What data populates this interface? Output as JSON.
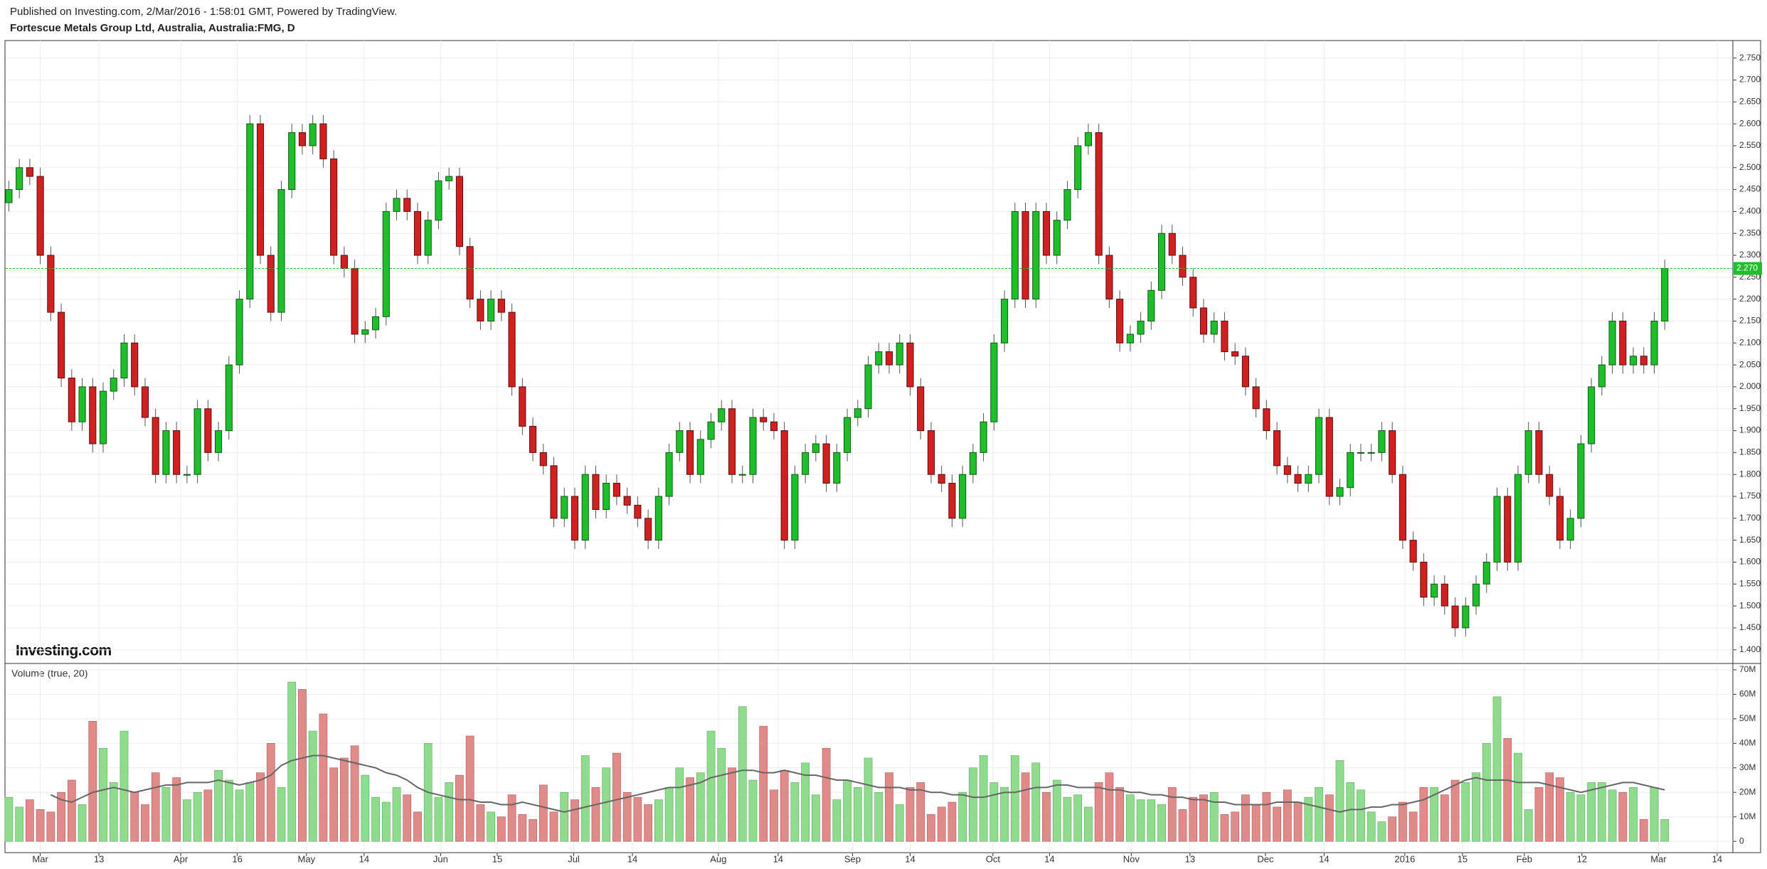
{
  "header": {
    "published": "Published on Investing.com, 2/Mar/2016 - 1:58:01 GMT, Powered by TradingView.",
    "symbol": "Fortescue Metals Group Ltd, Australia, Australia:FMG, D"
  },
  "logo": "Investing.com",
  "chart_data": {
    "type": "candlestick",
    "up_color": "#1fbf2c",
    "down_color": "#d0201f",
    "up_border": "#0d5c12",
    "down_border": "#5c0d0d",
    "open": [
      2.42,
      2.45,
      2.5,
      2.48,
      2.3,
      2.17,
      2.02,
      1.92,
      2.0,
      1.87,
      1.99,
      2.02,
      2.1,
      2.0,
      1.93,
      1.8,
      1.9,
      1.8,
      1.8,
      1.95,
      1.85,
      1.9,
      2.05,
      2.2,
      2.6,
      2.3,
      2.17,
      2.45,
      2.58,
      2.55,
      2.6,
      2.52,
      2.3,
      2.27,
      2.12,
      2.13,
      2.16,
      2.4,
      2.43,
      2.4,
      2.3,
      2.38,
      2.47,
      2.48,
      2.32,
      2.2,
      2.15,
      2.2,
      2.17,
      2.0,
      1.91,
      1.85,
      1.82,
      1.7,
      1.75,
      1.65,
      1.8,
      1.72,
      1.78,
      1.75,
      1.73,
      1.7,
      1.65,
      1.75,
      1.85,
      1.9,
      1.8,
      1.88,
      1.92,
      1.95,
      1.8,
      1.8,
      1.93,
      1.92,
      1.9,
      1.65,
      1.8,
      1.85,
      1.87,
      1.78,
      1.85,
      1.93,
      1.95,
      2.05,
      2.08,
      2.05,
      2.1,
      2.0,
      1.9,
      1.8,
      1.78,
      1.7,
      1.8,
      1.85,
      1.92,
      2.1,
      2.2,
      2.4,
      2.2,
      2.4,
      2.3,
      2.38,
      2.45,
      2.55,
      2.58,
      2.3,
      2.2,
      2.1,
      2.12,
      2.15,
      2.22,
      2.35,
      2.3,
      2.25,
      2.18,
      2.12,
      2.15,
      2.08,
      2.07,
      2.0,
      1.95,
      1.9,
      1.82,
      1.8,
      1.78,
      1.8,
      1.93,
      1.75,
      1.77,
      1.85,
      1.85,
      1.85,
      1.9,
      1.8,
      1.65,
      1.6,
      1.52,
      1.55,
      1.5,
      1.45,
      1.5,
      1.55,
      1.6,
      1.75,
      1.6,
      1.8,
      1.9,
      1.8,
      1.75,
      1.65,
      1.7,
      1.87,
      2.0,
      2.05,
      2.15,
      2.05,
      2.07,
      2.05,
      2.15
    ],
    "high": [
      2.47,
      2.52,
      2.52,
      2.5,
      2.32,
      2.19,
      2.04,
      2.02,
      2.02,
      2.01,
      2.04,
      2.12,
      2.12,
      2.02,
      1.95,
      1.92,
      1.92,
      1.82,
      1.97,
      1.97,
      1.92,
      2.07,
      2.22,
      2.62,
      2.62,
      2.32,
      2.47,
      2.6,
      2.6,
      2.62,
      2.62,
      2.54,
      2.32,
      2.29,
      2.15,
      2.18,
      2.42,
      2.45,
      2.45,
      2.42,
      2.4,
      2.49,
      2.5,
      2.5,
      2.34,
      2.22,
      2.22,
      2.22,
      2.19,
      2.02,
      1.93,
      1.87,
      1.84,
      1.77,
      1.77,
      1.82,
      1.82,
      1.8,
      1.8,
      1.77,
      1.75,
      1.72,
      1.77,
      1.87,
      1.92,
      1.92,
      1.9,
      1.94,
      1.97,
      1.97,
      1.82,
      1.95,
      1.95,
      1.94,
      1.92,
      1.82,
      1.87,
      1.89,
      1.89,
      1.87,
      1.95,
      1.97,
      2.07,
      2.1,
      2.1,
      2.12,
      2.12,
      2.02,
      1.92,
      1.82,
      1.8,
      1.82,
      1.87,
      1.94,
      2.12,
      2.22,
      2.42,
      2.42,
      2.42,
      2.42,
      2.4,
      2.47,
      2.57,
      2.6,
      2.6,
      2.32,
      2.22,
      2.14,
      2.17,
      2.24,
      2.37,
      2.37,
      2.32,
      2.27,
      2.2,
      2.17,
      2.17,
      2.1,
      2.09,
      2.02,
      1.97,
      1.92,
      1.84,
      1.82,
      1.82,
      1.95,
      1.95,
      1.79,
      1.87,
      1.87,
      1.87,
      1.92,
      1.92,
      1.82,
      1.67,
      1.62,
      1.57,
      1.57,
      1.52,
      1.52,
      1.57,
      1.62,
      1.77,
      1.77,
      1.82,
      1.92,
      1.92,
      1.82,
      1.77,
      1.72,
      1.89,
      2.02,
      2.07,
      2.17,
      2.17,
      2.09,
      2.09,
      2.17,
      2.29
    ],
    "low": [
      2.4,
      2.43,
      2.46,
      2.28,
      2.15,
      2.0,
      1.9,
      1.9,
      1.85,
      1.85,
      1.97,
      2.0,
      1.98,
      1.91,
      1.78,
      1.78,
      1.78,
      1.78,
      1.78,
      1.83,
      1.83,
      1.88,
      2.03,
      2.18,
      2.28,
      2.15,
      2.15,
      2.43,
      2.53,
      2.53,
      2.5,
      2.28,
      2.25,
      2.1,
      2.1,
      2.11,
      2.14,
      2.38,
      2.38,
      2.28,
      2.28,
      2.36,
      2.45,
      2.3,
      2.18,
      2.13,
      2.13,
      2.15,
      1.98,
      1.89,
      1.83,
      1.8,
      1.68,
      1.68,
      1.63,
      1.63,
      1.7,
      1.7,
      1.73,
      1.71,
      1.68,
      1.63,
      1.63,
      1.73,
      1.83,
      1.78,
      1.78,
      1.86,
      1.9,
      1.78,
      1.78,
      1.78,
      1.9,
      1.88,
      1.63,
      1.63,
      1.78,
      1.83,
      1.76,
      1.76,
      1.83,
      1.91,
      1.93,
      2.03,
      2.03,
      2.03,
      1.98,
      1.88,
      1.78,
      1.76,
      1.68,
      1.68,
      1.78,
      1.83,
      1.9,
      2.08,
      2.18,
      2.18,
      2.18,
      2.28,
      2.28,
      2.36,
      2.43,
      2.53,
      2.28,
      2.18,
      2.08,
      2.08,
      2.1,
      2.13,
      2.2,
      2.28,
      2.23,
      2.16,
      2.1,
      2.1,
      2.06,
      2.05,
      1.98,
      1.93,
      1.88,
      1.8,
      1.78,
      1.76,
      1.76,
      1.78,
      1.73,
      1.73,
      1.75,
      1.83,
      1.83,
      1.83,
      1.78,
      1.63,
      1.58,
      1.5,
      1.5,
      1.48,
      1.43,
      1.43,
      1.48,
      1.53,
      1.58,
      1.58,
      1.58,
      1.78,
      1.78,
      1.73,
      1.63,
      1.63,
      1.68,
      1.85,
      1.98,
      2.03,
      2.03,
      2.03,
      2.03,
      2.03,
      2.13
    ],
    "close": [
      2.45,
      2.5,
      2.48,
      2.3,
      2.17,
      2.02,
      1.92,
      2.0,
      1.87,
      1.99,
      2.02,
      2.1,
      2.0,
      1.93,
      1.8,
      1.9,
      1.8,
      1.8,
      1.95,
      1.85,
      1.9,
      2.05,
      2.2,
      2.6,
      2.3,
      2.17,
      2.45,
      2.58,
      2.55,
      2.6,
      2.52,
      2.3,
      2.27,
      2.12,
      2.13,
      2.16,
      2.4,
      2.43,
      2.4,
      2.3,
      2.38,
      2.47,
      2.48,
      2.32,
      2.2,
      2.15,
      2.2,
      2.17,
      2.0,
      1.91,
      1.85,
      1.82,
      1.7,
      1.75,
      1.65,
      1.8,
      1.72,
      1.78,
      1.75,
      1.73,
      1.7,
      1.65,
      1.75,
      1.85,
      1.9,
      1.8,
      1.88,
      1.92,
      1.95,
      1.8,
      1.8,
      1.93,
      1.92,
      1.9,
      1.65,
      1.8,
      1.85,
      1.87,
      1.78,
      1.85,
      1.93,
      1.95,
      2.05,
      2.08,
      2.05,
      2.1,
      2.0,
      1.9,
      1.8,
      1.78,
      1.7,
      1.8,
      1.85,
      1.92,
      2.1,
      2.2,
      2.4,
      2.2,
      2.4,
      2.3,
      2.38,
      2.45,
      2.55,
      2.58,
      2.3,
      2.2,
      2.1,
      2.12,
      2.15,
      2.22,
      2.35,
      2.3,
      2.25,
      2.18,
      2.12,
      2.15,
      2.08,
      2.07,
      2.0,
      1.95,
      1.9,
      1.82,
      1.8,
      1.78,
      1.8,
      1.93,
      1.75,
      1.77,
      1.85,
      1.85,
      1.85,
      1.9,
      1.8,
      1.65,
      1.6,
      1.52,
      1.55,
      1.5,
      1.45,
      1.5,
      1.55,
      1.6,
      1.75,
      1.6,
      1.8,
      1.9,
      1.8,
      1.75,
      1.65,
      1.7,
      1.87,
      2.0,
      2.05,
      2.15,
      2.05,
      2.07,
      2.05,
      2.15,
      2.27
    ],
    "ylim": [
      1.372,
      2.79
    ],
    "yticks": [
      {
        "value": 1.4,
        "label": "1.400"
      },
      {
        "value": 1.45,
        "label": "1.450"
      },
      {
        "value": 1.5,
        "label": "1.500"
      },
      {
        "value": 1.55,
        "label": "1.550"
      },
      {
        "value": 1.6,
        "label": "1.600"
      },
      {
        "value": 1.65,
        "label": "1.650"
      },
      {
        "value": 1.7,
        "label": "1.700"
      },
      {
        "value": 1.75,
        "label": "1.750"
      },
      {
        "value": 1.8,
        "label": "1.800"
      },
      {
        "value": 1.85,
        "label": "1.850"
      },
      {
        "value": 1.9,
        "label": "1.900"
      },
      {
        "value": 1.95,
        "label": "1.950"
      },
      {
        "value": 2,
        "label": "2.000"
      },
      {
        "value": 2.05,
        "label": "2.050"
      },
      {
        "value": 2.1,
        "label": "2.100"
      },
      {
        "value": 2.15,
        "label": "2.150"
      },
      {
        "value": 2.2,
        "label": "2.200"
      },
      {
        "value": 2.25,
        "label": "2.250"
      },
      {
        "value": 2.3,
        "label": "2.300"
      },
      {
        "value": 2.35,
        "label": "2.350"
      },
      {
        "value": 2.4,
        "label": "2.400"
      },
      {
        "value": 2.45,
        "label": "2.450"
      },
      {
        "value": 2.5,
        "label": "2.500"
      },
      {
        "value": 2.55,
        "label": "2.550"
      },
      {
        "value": 2.6,
        "label": "2.600"
      },
      {
        "value": 2.65,
        "label": "2.650"
      },
      {
        "value": 2.7,
        "label": "2.700"
      },
      {
        "value": 2.75,
        "label": "2.750"
      }
    ],
    "xlim": [
      -0.3,
      164.5
    ],
    "xticks": [
      {
        "value": 3.0,
        "label": "Mar"
      },
      {
        "value": 8.6,
        "label": "13"
      },
      {
        "value": 16.4,
        "label": "Apr"
      },
      {
        "value": 21.8,
        "label": "16"
      },
      {
        "value": 28.4,
        "label": "May"
      },
      {
        "value": 33.9,
        "label": "14"
      },
      {
        "value": 41.2,
        "label": "Jun"
      },
      {
        "value": 46.6,
        "label": "15"
      },
      {
        "value": 53.9,
        "label": "Jul"
      },
      {
        "value": 59.5,
        "label": "14"
      },
      {
        "value": 67.7,
        "label": "Aug"
      },
      {
        "value": 73.4,
        "label": "14"
      },
      {
        "value": 80.5,
        "label": "Sep"
      },
      {
        "value": 86.0,
        "label": "14"
      },
      {
        "value": 93.9,
        "label": "Oct"
      },
      {
        "value": 99.3,
        "label": "14"
      },
      {
        "value": 107.1,
        "label": "Nov"
      },
      {
        "value": 112.7,
        "label": "13"
      },
      {
        "value": 119.9,
        "label": "Dec"
      },
      {
        "value": 125.5,
        "label": "14"
      },
      {
        "value": 133.2,
        "label": "2016"
      },
      {
        "value": 138.7,
        "label": "15"
      },
      {
        "value": 144.6,
        "label": "Feb"
      },
      {
        "value": 150.1,
        "label": "12"
      },
      {
        "value": 157.4,
        "label": "Mar"
      },
      {
        "value": 163.0,
        "label": "14"
      }
    ],
    "grid": true,
    "last_price": {
      "value": 2.27,
      "label": "2.270",
      "color": "#1fbf2c"
    },
    "volume": {
      "title": "Volume (true, 20)",
      "up_color": "#8fdc8f",
      "down_color": "#e08a8a",
      "ma_color": "#666666",
      "values": [
        18,
        14,
        17,
        13,
        12,
        20,
        25,
        15,
        49,
        38,
        24,
        45,
        20,
        15,
        28,
        22,
        26,
        17,
        20,
        21,
        29,
        25,
        21,
        24,
        28,
        40,
        22,
        65,
        62,
        45,
        52,
        30,
        34,
        39,
        27,
        18,
        16,
        22,
        19,
        12,
        40,
        18,
        24,
        27,
        43,
        15,
        12,
        10,
        19,
        11,
        9,
        23,
        12,
        20,
        17,
        35,
        22,
        30,
        36,
        20,
        18,
        15,
        17,
        22,
        30,
        26,
        28,
        45,
        38,
        30,
        55,
        25,
        47,
        21,
        29,
        24,
        32,
        19,
        38,
        17,
        25,
        22,
        34,
        20,
        28,
        15,
        22,
        24,
        11,
        14,
        16,
        20,
        30,
        35,
        24,
        22,
        35,
        28,
        32,
        20,
        25,
        18,
        19,
        14,
        24,
        28,
        22,
        19,
        17,
        17,
        15,
        22,
        13,
        18,
        19,
        20,
        11,
        12,
        19,
        15,
        20,
        14,
        21,
        16,
        18,
        22,
        19,
        33,
        24,
        21,
        12,
        8,
        10,
        16,
        12,
        22,
        22,
        19,
        25,
        24,
        28,
        40,
        59,
        42,
        36,
        13,
        22,
        28,
        26,
        20,
        19,
        24,
        24,
        21,
        20,
        22,
        9,
        22,
        9
      ],
      "ma": [
        null,
        null,
        null,
        null,
        19,
        17,
        16,
        18,
        20,
        21,
        22,
        21,
        20,
        21,
        22,
        23,
        23,
        24,
        24,
        24,
        25,
        24,
        23,
        24,
        25,
        27,
        31,
        33,
        34,
        35,
        35,
        34,
        33,
        32,
        31,
        30,
        28,
        27,
        25,
        22,
        20,
        19,
        18,
        17,
        17,
        16,
        16,
        15,
        15,
        16,
        15,
        14,
        13,
        12,
        13,
        14,
        15,
        16,
        17,
        18,
        19,
        20,
        21,
        22,
        22,
        23,
        24,
        26,
        27,
        28,
        29,
        29,
        28,
        28,
        29,
        28,
        27,
        27,
        26,
        25,
        25,
        24,
        23,
        22,
        22,
        22,
        21,
        21,
        20,
        20,
        19,
        19,
        18,
        18,
        19,
        20,
        20,
        21,
        22,
        22,
        23,
        23,
        22,
        22,
        22,
        21,
        21,
        20,
        20,
        19,
        19,
        18,
        18,
        17,
        17,
        16,
        16,
        15,
        15,
        15,
        15,
        16,
        16,
        16,
        15,
        14,
        13,
        12,
        13,
        13,
        14,
        14,
        15,
        15,
        16,
        17,
        19,
        21,
        23,
        25,
        26,
        25,
        25,
        25,
        24,
        24,
        24,
        23,
        22,
        21,
        20,
        21,
        22,
        23,
        24,
        24,
        23,
        22,
        21
      ],
      "ylim": [
        -4.6,
        72
      ],
      "yticks": [
        0,
        {
          "value": 10,
          "label": "10M"
        },
        {
          "value": 20,
          "label": "20M"
        },
        {
          "value": 30,
          "label": "30M"
        },
        {
          "value": 40,
          "label": "40M"
        },
        {
          "value": 50,
          "label": "50M"
        },
        {
          "value": 60,
          "label": "60M"
        },
        {
          "value": 70,
          "label": "70M"
        }
      ]
    }
  }
}
